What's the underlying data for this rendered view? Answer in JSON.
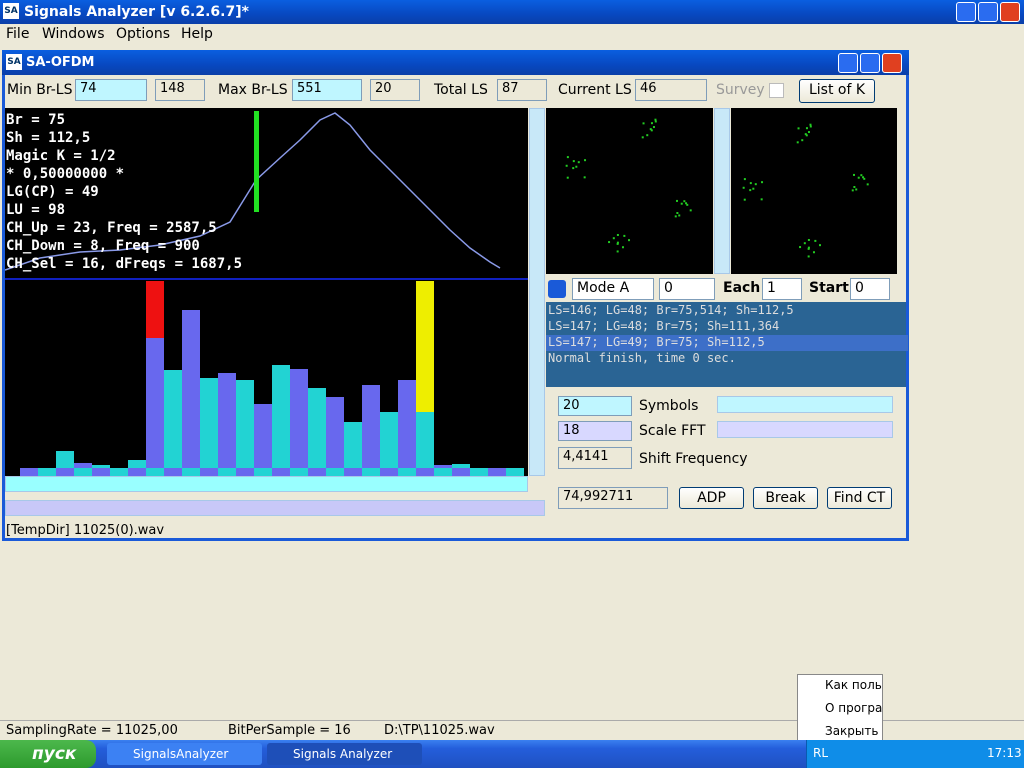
{
  "window": {
    "icon": "SA",
    "title": "Signals Analyzer [v 6.2.6.7]*"
  },
  "menu": [
    "File",
    "Windows",
    "Options",
    "Help"
  ],
  "child": {
    "icon": "SA",
    "title": "SA-OFDM"
  },
  "toolbar": {
    "min_label": "Min Br-LS",
    "min_value": "74",
    "min_aux": "148",
    "max_label": "Max Br-LS",
    "max_value": "551",
    "max_aux": "20",
    "total_label": "Total LS",
    "total_value": "87",
    "current_label": "Current LS",
    "current_value": "46",
    "survey": "Survey",
    "list_button": "List of K"
  },
  "readout": [
    "Br = 75",
    "Sh = 112,5",
    "Magic K = 1/2",
    "* 0,50000000 *",
    "LG(CP) = 49",
    "LU = 98",
    "CH_Up = 23, Freq = 2587,5",
    "CH_Down = 8, Freq = 900",
    "CH_Sel = 16, dFreqs = 1687,5"
  ],
  "controls": {
    "mode": "Mode A",
    "mode_value": "0",
    "each_label": "Each",
    "each_value": "1",
    "start_label": "Start+",
    "start_value": "0"
  },
  "log": [
    "LS=146; LG=48; Br=75,514; Sh=112,5",
    "LS=147; LG=48; Br=75; Sh=111,364",
    "LS=147; LG=49; Br=75; Sh=112,5",
    "Normal finish, time 0 sec."
  ],
  "params": {
    "symbols_value": "20",
    "symbols_label": "Symbols",
    "scale_value": "18",
    "scale_label": "Scale FFT",
    "shift_value": "4,4141",
    "shift_label": "Shift Frequency",
    "result": "74,992711",
    "buttons": [
      "ADP",
      "Break",
      "Find CT"
    ]
  },
  "child_status": "[TempDir] 11025(0).wav",
  "status": [
    "SamplingRate = 11025,00",
    "BitPerSample = 16",
    "D:\\TP\\11025.wav"
  ],
  "tray_menu": [
    "Как польз",
    "О програм",
    "Закрыть"
  ],
  "taskbar": {
    "start": "пуск",
    "tasks": [
      "SignalsAnalyzer",
      "Signals Analyzer"
    ],
    "lang": "RL",
    "clock": "17:13"
  }
}
